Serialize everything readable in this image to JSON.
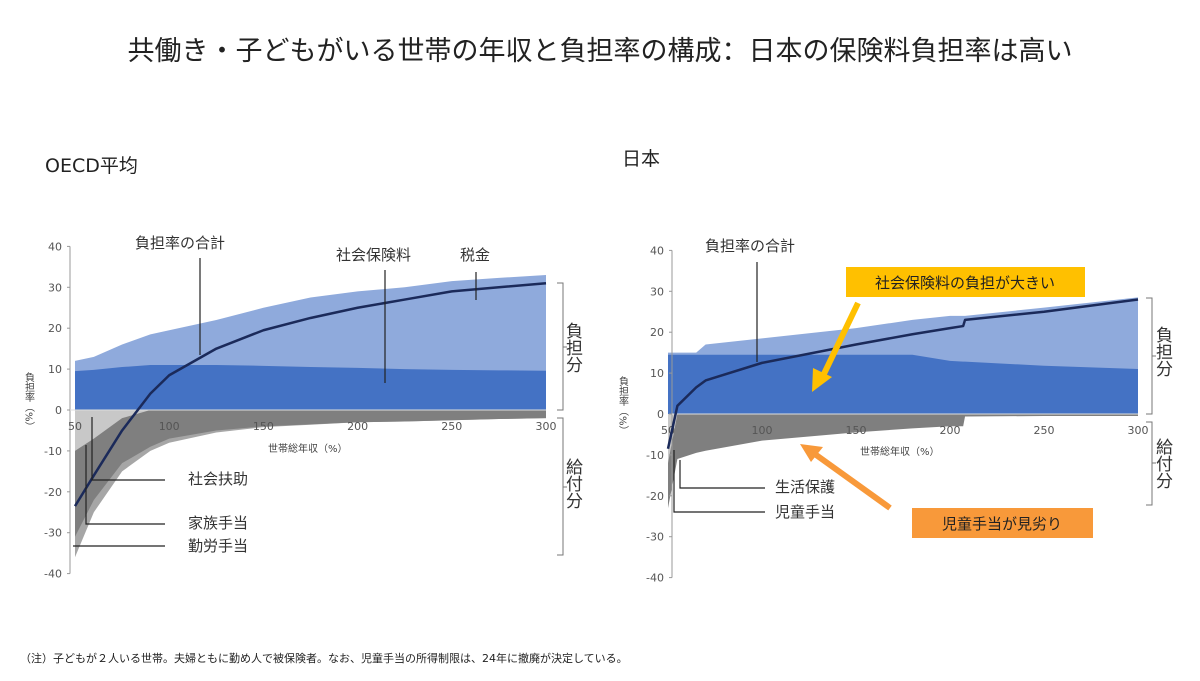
{
  "title": "共働き・子どもがいる世帯の年収と負担率の構成：日本の保険料負担率は高い",
  "footnote": "（注）子どもが２人いる世帯。夫婦ともに勤め人で被保険者。なお、児童手当の所得制限は、24年に撤廃が決定している。",
  "colors": {
    "tax": "#8faadc",
    "ssc": "#4472c4",
    "line": "#1b2a5a",
    "assist": "#c8c8c8",
    "family": "#7f7f7f",
    "inwork": "#a6a6a6",
    "callout_yellow": "#ffc000",
    "callout_orange": "#f8993a"
  },
  "chart_data": [
    {
      "type": "area",
      "title": "OECD平均",
      "xlabel": "世帯総年収（%）",
      "ylabel": "負担率（%）",
      "xlim": [
        50,
        300
      ],
      "ylim": [
        -40,
        40
      ],
      "xticks": [
        50,
        100,
        150,
        200,
        250,
        300
      ],
      "yticks": [
        40,
        30,
        20,
        10,
        0,
        -10,
        -20,
        -30,
        -40
      ],
      "x": [
        50,
        60,
        75,
        90,
        100,
        125,
        150,
        175,
        200,
        225,
        250,
        275,
        300
      ],
      "series": [
        {
          "name": "税金",
          "kind": "stack-top",
          "values": [
            12,
            13,
            16,
            18.5,
            19.5,
            22,
            25,
            27.5,
            29,
            30,
            31.5,
            32.3,
            33
          ]
        },
        {
          "name": "社会保険料",
          "values": [
            9.5,
            9.8,
            10.5,
            11,
            11,
            11,
            10.8,
            10.5,
            10.3,
            10,
            9.8,
            9.7,
            9.6
          ]
        },
        {
          "name": "社会扶助",
          "kind": "neg",
          "values": [
            -10,
            -7,
            -2,
            0,
            0,
            0,
            0,
            0,
            0,
            0,
            0,
            0,
            0
          ]
        },
        {
          "name": "家族手当",
          "kind": "neg",
          "values": [
            -31,
            -22,
            -13,
            -9,
            -7,
            -5,
            -4,
            -3.5,
            -3,
            -2.8,
            -2.5,
            -2.2,
            -2
          ]
        },
        {
          "name": "勤労手当",
          "kind": "neg",
          "values": [
            -36,
            -25,
            -15,
            -10,
            -8,
            -5.5,
            -4.2,
            -3.6,
            -3,
            -2.8,
            -2.5,
            -2.2,
            -2
          ]
        },
        {
          "name": "負担率の合計",
          "kind": "line",
          "values": [
            -23.5,
            -16,
            -5,
            4,
            8.5,
            15,
            19.5,
            22.5,
            25,
            27,
            29,
            30,
            31
          ]
        }
      ],
      "annotations": {
        "burden": "負担分",
        "benefit": "給付分"
      }
    },
    {
      "type": "area",
      "title": "日本",
      "xlabel": "世帯総年収（%）",
      "ylabel": "負担率（%）",
      "xlim": [
        50,
        300
      ],
      "ylim": [
        -40,
        40
      ],
      "xticks": [
        50,
        100,
        150,
        200,
        250,
        300
      ],
      "yticks": [
        40,
        30,
        20,
        10,
        0,
        -10,
        -20,
        -30,
        -40
      ],
      "x": [
        50,
        55,
        65,
        70,
        100,
        150,
        180,
        200,
        207,
        208,
        250,
        300
      ],
      "series": [
        {
          "name": "税金",
          "kind": "stack-top",
          "values": [
            15,
            15,
            15,
            17,
            18.5,
            21,
            23,
            24,
            24,
            24,
            26,
            28.5
          ]
        },
        {
          "name": "社会保険料",
          "values": [
            14.5,
            14.5,
            14.5,
            14.5,
            14.5,
            14.5,
            14.5,
            13,
            12.8,
            12.8,
            11.8,
            11
          ]
        },
        {
          "name": "生活保護",
          "kind": "neg",
          "values": [
            -12,
            0,
            0,
            0,
            0,
            0,
            0,
            0,
            0,
            0,
            0,
            0
          ]
        },
        {
          "name": "児童手当",
          "kind": "neg",
          "values": [
            -23,
            -11,
            -9.5,
            -9,
            -6.5,
            -4.5,
            -3.5,
            -3,
            -3,
            -0.6,
            -0.5,
            -0.5
          ]
        },
        {
          "name": "負担率の合計",
          "kind": "line",
          "values": [
            -8.5,
            2,
            6.5,
            8.2,
            12.5,
            17,
            19.5,
            21,
            21.5,
            23,
            25,
            28
          ]
        }
      ],
      "annotations": {
        "burden": "負担分",
        "benefit": "給付分",
        "callout1": "社会保険料の負担が大きい",
        "callout2": "児童手当が見劣り"
      }
    }
  ]
}
